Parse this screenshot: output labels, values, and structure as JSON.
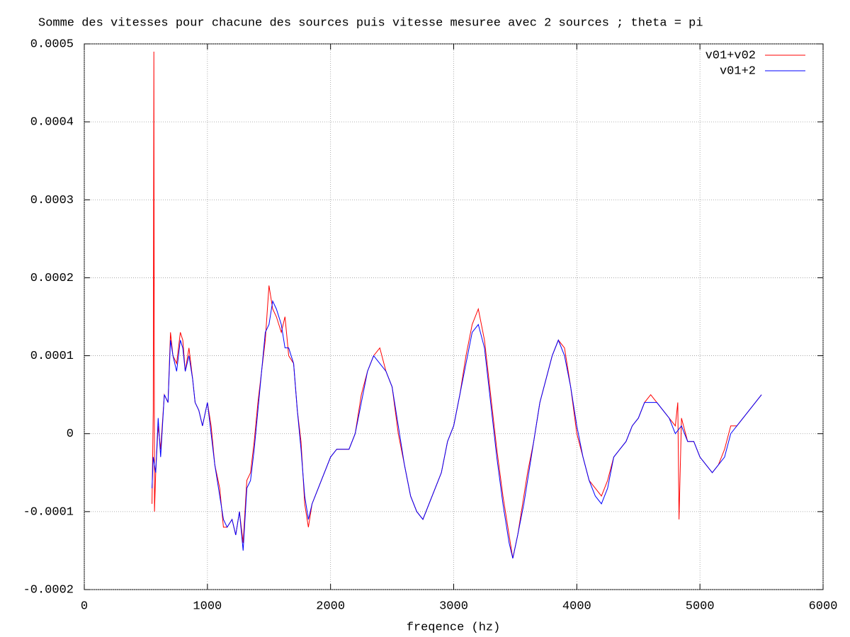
{
  "chart_data": {
    "type": "line",
    "title": "Somme des vitesses pour chacune des sources puis vitesse mesuree avec 2 sources ; theta = pi",
    "x_label": "freqence (hz)",
    "xlim": [
      0,
      6000
    ],
    "xticks": [
      0,
      1000,
      2000,
      3000,
      4000,
      5000,
      6000
    ],
    "ylim": [
      -0.0002,
      0.0005
    ],
    "yticks": [
      -0.0002,
      -0.0001,
      0,
      0.0001,
      0.0002,
      0.0003,
      0.0004,
      0.0005
    ],
    "grid": true,
    "legend": "top-right",
    "series": [
      {
        "name": "v01+v02",
        "color": "#ff0000",
        "x": [
          550,
          560,
          565,
          570,
          580,
          600,
          620,
          650,
          680,
          700,
          720,
          750,
          780,
          800,
          820,
          850,
          880,
          900,
          930,
          960,
          1000,
          1030,
          1060,
          1100,
          1130,
          1160,
          1200,
          1230,
          1260,
          1290,
          1320,
          1350,
          1380,
          1410,
          1440,
          1470,
          1500,
          1530,
          1560,
          1600,
          1630,
          1660,
          1700,
          1730,
          1760,
          1790,
          1820,
          1850,
          1900,
          1950,
          2000,
          2050,
          2100,
          2150,
          2200,
          2250,
          2300,
          2350,
          2400,
          2450,
          2500,
          2550,
          2600,
          2650,
          2700,
          2750,
          2800,
          2850,
          2900,
          2950,
          3000,
          3050,
          3100,
          3150,
          3200,
          3250,
          3300,
          3350,
          3400,
          3450,
          3480,
          3520,
          3570,
          3600,
          3650,
          3700,
          3750,
          3800,
          3850,
          3900,
          3950,
          4000,
          4050,
          4100,
          4150,
          4200,
          4250,
          4300,
          4350,
          4400,
          4450,
          4500,
          4550,
          4600,
          4650,
          4700,
          4750,
          4800,
          4820,
          4830,
          4850,
          4900,
          4950,
          5000,
          5050,
          5100,
          5150,
          5200,
          5250,
          5300,
          5350,
          5400,
          5450,
          5500
        ],
        "values": [
          -9e-05,
          3e-05,
          0.00049,
          -0.0001,
          -5e-05,
          1e-05,
          -2e-05,
          5e-05,
          4e-05,
          0.00013,
          0.0001,
          9e-05,
          0.00013,
          0.00012,
          8e-05,
          0.00011,
          7e-05,
          4e-05,
          3e-05,
          1e-05,
          4e-05,
          1e-05,
          -4e-05,
          -7e-05,
          -0.00012,
          -0.00012,
          -0.00011,
          -0.00013,
          -0.0001,
          -0.00014,
          -6e-05,
          -5e-05,
          -1e-05,
          4e-05,
          8e-05,
          0.00012,
          0.00019,
          0.00016,
          0.00015,
          0.00013,
          0.00015,
          0.0001,
          9e-05,
          3e-05,
          -1e-05,
          -9e-05,
          -0.00012,
          -9e-05,
          -7e-05,
          -5e-05,
          -3e-05,
          -2e-05,
          -2e-05,
          -2e-05,
          0.0,
          5e-05,
          8e-05,
          0.0001,
          0.00011,
          8e-05,
          6e-05,
          0.0,
          -4e-05,
          -8e-05,
          -0.0001,
          -0.00011,
          -9e-05,
          -7e-05,
          -5e-05,
          -1e-05,
          1e-05,
          5e-05,
          0.0001,
          0.00014,
          0.00016,
          0.00012,
          5e-05,
          -2e-05,
          -8e-05,
          -0.00013,
          -0.00016,
          -0.00013,
          -8e-05,
          -5e-05,
          -1e-05,
          4e-05,
          7e-05,
          0.0001,
          0.00012,
          0.00011,
          6e-05,
          0.0,
          -3e-05,
          -6e-05,
          -7e-05,
          -8e-05,
          -6e-05,
          -3e-05,
          -2e-05,
          -1e-05,
          1e-05,
          2e-05,
          4e-05,
          5e-05,
          4e-05,
          3e-05,
          2e-05,
          1e-05,
          4e-05,
          -0.00011,
          2e-05,
          -1e-05,
          -1e-05,
          -3e-05,
          -4e-05,
          -5e-05,
          -4e-05,
          -2e-05,
          1e-05,
          1e-05,
          2e-05,
          3e-05,
          4e-05,
          5e-05
        ]
      },
      {
        "name": "v01+2",
        "color": "#0000ff",
        "x": [
          550,
          560,
          580,
          600,
          620,
          650,
          680,
          700,
          720,
          750,
          780,
          800,
          820,
          850,
          880,
          900,
          930,
          960,
          1000,
          1030,
          1060,
          1100,
          1130,
          1160,
          1200,
          1230,
          1260,
          1290,
          1320,
          1350,
          1380,
          1410,
          1440,
          1470,
          1500,
          1530,
          1560,
          1600,
          1630,
          1660,
          1700,
          1730,
          1760,
          1790,
          1820,
          1850,
          1900,
          1950,
          2000,
          2050,
          2100,
          2150,
          2200,
          2250,
          2300,
          2350,
          2400,
          2450,
          2500,
          2550,
          2600,
          2650,
          2700,
          2750,
          2800,
          2850,
          2900,
          2950,
          3000,
          3050,
          3100,
          3150,
          3200,
          3250,
          3300,
          3350,
          3400,
          3450,
          3480,
          3520,
          3570,
          3600,
          3650,
          3700,
          3750,
          3800,
          3850,
          3900,
          3950,
          4000,
          4050,
          4100,
          4150,
          4200,
          4250,
          4300,
          4350,
          4400,
          4450,
          4500,
          4550,
          4600,
          4650,
          4700,
          4750,
          4800,
          4850,
          4900,
          4950,
          5000,
          5050,
          5100,
          5150,
          5200,
          5250,
          5300,
          5350,
          5400,
          5450,
          5500
        ],
        "values": [
          -7e-05,
          -3e-05,
          -5e-05,
          2e-05,
          -3e-05,
          5e-05,
          4e-05,
          0.00012,
          0.0001,
          8e-05,
          0.00012,
          0.00011,
          8e-05,
          0.0001,
          7e-05,
          4e-05,
          3e-05,
          1e-05,
          4e-05,
          0.0,
          -4e-05,
          -8e-05,
          -0.00011,
          -0.00012,
          -0.00011,
          -0.00013,
          -0.0001,
          -0.00015,
          -7e-05,
          -6e-05,
          -2e-05,
          3e-05,
          8e-05,
          0.00013,
          0.00014,
          0.00017,
          0.00016,
          0.00014,
          0.00011,
          0.00011,
          9e-05,
          3e-05,
          -2e-05,
          -8e-05,
          -0.00011,
          -9e-05,
          -7e-05,
          -5e-05,
          -3e-05,
          -2e-05,
          -2e-05,
          -2e-05,
          0.0,
          4e-05,
          8e-05,
          0.0001,
          9e-05,
          8e-05,
          6e-05,
          1e-05,
          -4e-05,
          -8e-05,
          -0.0001,
          -0.00011,
          -9e-05,
          -7e-05,
          -5e-05,
          -1e-05,
          1e-05,
          5e-05,
          9e-05,
          0.00013,
          0.00014,
          0.00011,
          4e-05,
          -3e-05,
          -9e-05,
          -0.00014,
          -0.00016,
          -0.00013,
          -9e-05,
          -6e-05,
          -1e-05,
          4e-05,
          7e-05,
          0.0001,
          0.00012,
          0.0001,
          6e-05,
          1e-05,
          -3e-05,
          -6e-05,
          -8e-05,
          -9e-05,
          -7e-05,
          -3e-05,
          -2e-05,
          -1e-05,
          1e-05,
          2e-05,
          4e-05,
          4e-05,
          4e-05,
          3e-05,
          2e-05,
          0.0,
          1e-05,
          -1e-05,
          -1e-05,
          -3e-05,
          -4e-05,
          -5e-05,
          -4e-05,
          -3e-05,
          0.0,
          1e-05,
          2e-05,
          3e-05,
          4e-05,
          5e-05
        ]
      }
    ]
  }
}
